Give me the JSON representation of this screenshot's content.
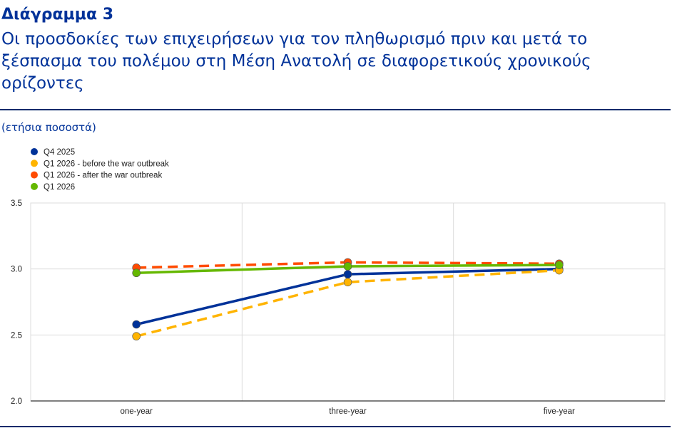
{
  "header": {
    "label": "Διάγραμμα 3",
    "title": "Οι προσδοκίες των επιχειρήσεων για τον πληθωρισμό πριν και μετά το ξέσπασμα του πολέμου στη Μέση Ανατολή σε διαφορετικούς χρονικούς ορίζοντες",
    "unit": "(ετήσια ποσοστά)"
  },
  "chart_data": {
    "type": "line",
    "categories": [
      "one-year",
      "three-year",
      "five-year"
    ],
    "ylim": [
      2.0,
      3.5
    ],
    "yticks": [
      "2.0",
      "2.5",
      "3.0",
      "3.5"
    ],
    "grid": true,
    "legend_position": "top-left",
    "series": [
      {
        "name": "Q4 2025",
        "values": [
          2.58,
          2.96,
          3.0
        ],
        "color": "#003299",
        "dashed": false
      },
      {
        "name": "Q1 2026 - before the war outbreak",
        "values": [
          2.49,
          2.9,
          2.99
        ],
        "color": "#FFB400",
        "dashed": true
      },
      {
        "name": "Q1 2026 - after the war outbreak",
        "values": [
          3.01,
          3.05,
          3.04
        ],
        "color": "#FF4B00",
        "dashed": true
      },
      {
        "name": "Q1 2026",
        "values": [
          2.97,
          3.02,
          3.03
        ],
        "color": "#65B800",
        "dashed": false
      }
    ]
  }
}
